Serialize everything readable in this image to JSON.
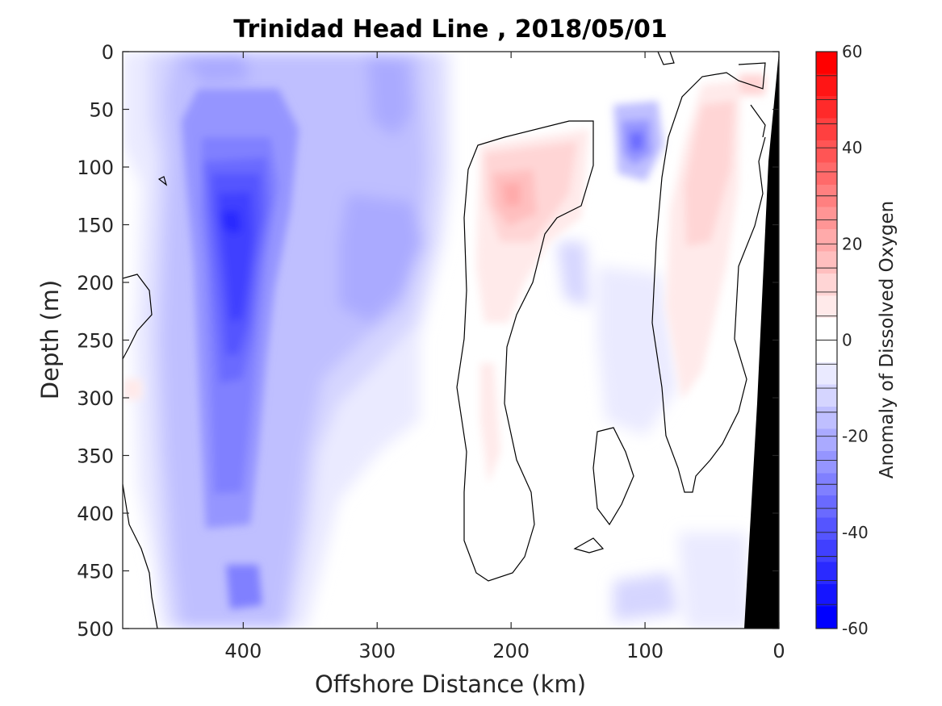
{
  "chart_data": {
    "type": "heatmap",
    "title": "Trinidad Head Line , 2018/05/01",
    "xlabel": "Offshore Distance (km)",
    "ylabel": "Depth (m)",
    "colorbar_label": "Anomaly of Dissolved Oxygen",
    "xlim": [
      490,
      0
    ],
    "ylim": [
      0,
      500
    ],
    "x_reversed": true,
    "y_reversed": true,
    "x_ticks": [
      400,
      300,
      200,
      100,
      0
    ],
    "x_tick_labels": [
      "400",
      "300",
      "200",
      "100",
      "0"
    ],
    "y_ticks": [
      0,
      50,
      100,
      150,
      200,
      250,
      300,
      350,
      400,
      450,
      500
    ],
    "y_tick_labels": [
      "0",
      "50",
      "100",
      "150",
      "200",
      "250",
      "300",
      "350",
      "400",
      "450",
      "500"
    ],
    "colorbar": {
      "range": [
        -60,
        60
      ],
      "levels_step": 5,
      "ticks": [
        60,
        40,
        20,
        0,
        -20,
        -40,
        -60
      ],
      "tick_labels": [
        "60",
        "40",
        "20",
        "0",
        "-20",
        "-40",
        "-60"
      ],
      "colors": [
        "#0000ff",
        "#1515ff",
        "#2a2aff",
        "#4040ff",
        "#5555ff",
        "#6a6aff",
        "#8080ff",
        "#9595ff",
        "#aaaaff",
        "#bfbfff",
        "#d5d5ff",
        "#eaeaff",
        "#ffffff",
        "#ffffff",
        "#ffeaea",
        "#ffd5d5",
        "#ffbfbf",
        "#ffaaaa",
        "#ff9595",
        "#ff8080",
        "#ff6a6a",
        "#ff5555",
        "#ff4040",
        "#ff2a2a",
        "#ff1515",
        "#ff0000"
      ]
    },
    "features": [
      {
        "name": "strong-negative-core",
        "center_x": 400,
        "center_y": 200,
        "min_value": -45
      },
      {
        "name": "subsurface-positive-anomaly",
        "center_x": 200,
        "center_y": 125,
        "max_value": 15
      },
      {
        "name": "nearshore-positive-band",
        "center_x": 45,
        "center_y": 170,
        "max_value": 10
      },
      {
        "name": "negative-eddy",
        "center_x": 110,
        "center_y": 80,
        "min_value": -25
      }
    ],
    "bathymetry_fill": "#000000",
    "contour_color": "#000000"
  }
}
